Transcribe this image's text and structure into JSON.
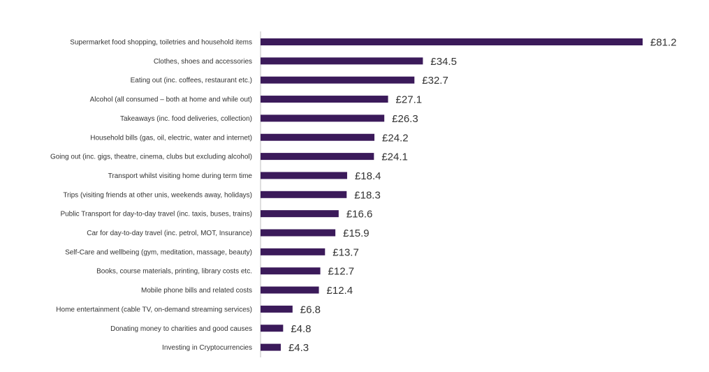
{
  "chart_data": {
    "type": "bar",
    "orientation": "horizontal",
    "categories": [
      "Supermarket food shopping, toiletries and household items",
      "Clothes, shoes and accessories",
      "Eating out (inc. coffees, restaurant etc.)",
      "Alcohol (all consumed – both at home and while out)",
      "Takeaways (inc. food deliveries, collection)",
      "Household bills (gas, oil, electric, water and internet)",
      "Going out (inc. gigs, theatre, cinema, clubs but excluding alcohol)",
      "Transport whilst visiting home during term time",
      "Trips (visiting friends at other unis, weekends away, holidays)",
      "Public Transport for day-to-day travel (inc. taxis, buses, trains)",
      "Car for day-to-day travel (inc. petrol, MOT, Insurance)",
      "Self-Care and wellbeing (gym, meditation, massage, beauty)",
      "Books, course materials, printing, library costs etc.",
      "Mobile phone bills and related costs",
      "Home entertainment (cable TV, on-demand streaming services)",
      "Donating money to charities and good causes",
      "Investing in Cryptocurrencies"
    ],
    "values": [
      81.2,
      34.5,
      32.7,
      27.1,
      26.3,
      24.2,
      24.1,
      18.4,
      18.3,
      16.6,
      15.9,
      13.7,
      12.7,
      12.4,
      6.8,
      4.8,
      4.3
    ],
    "value_labels": [
      "£81.2",
      "£34.5",
      "£32.7",
      "£27.1",
      "£26.3",
      "£24.2",
      "£24.1",
      "£18.4",
      "£18.3",
      "£16.6",
      "£15.9",
      "£13.7",
      "£12.7",
      "£12.4",
      "£6.8",
      "£4.8",
      "£4.3"
    ],
    "xlim": [
      0,
      81.2
    ],
    "grid": false,
    "legend": "none",
    "bar_color": "#3b1a5a",
    "axis_color": "#bfbfbf"
  }
}
